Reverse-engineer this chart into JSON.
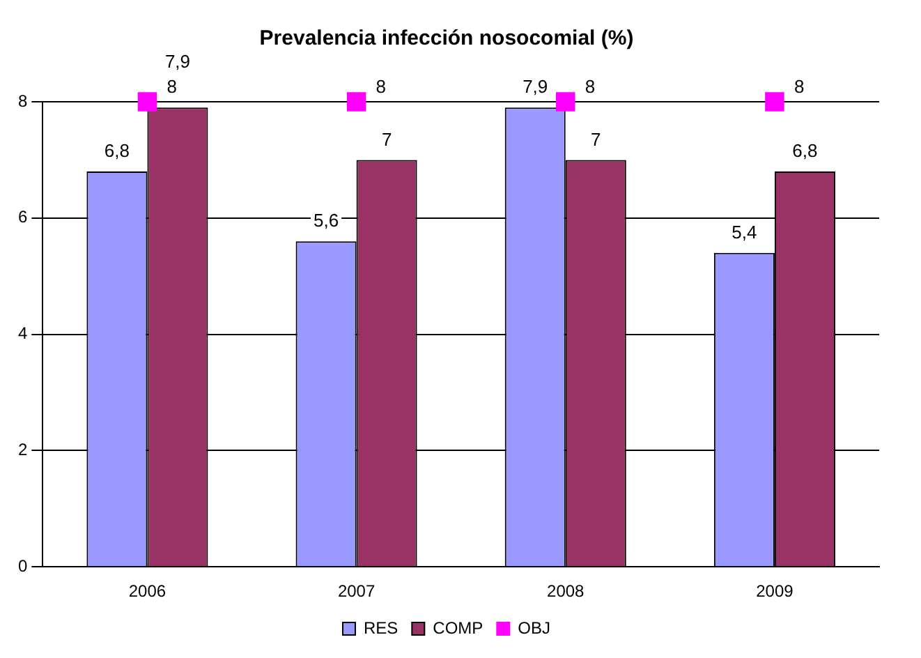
{
  "chart_data": {
    "type": "bar",
    "title": "Prevalencia infección nosocomial (%)",
    "categories": [
      "2006",
      "2007",
      "2008",
      "2009"
    ],
    "series": [
      {
        "name": "RES",
        "color": "#9999ff",
        "values": [
          6.8,
          5.6,
          7.9,
          5.4
        ],
        "value_labels": [
          "6,8",
          "5,6",
          "7,9",
          "5,4"
        ]
      },
      {
        "name": "COMP",
        "color": "#993366",
        "values": [
          7.9,
          7,
          7,
          6.8
        ],
        "value_labels": [
          "7,9",
          "7",
          "7",
          "6,8"
        ]
      },
      {
        "name": "OBJ",
        "type": "scatter",
        "color": "#ff00ff",
        "marker": "square",
        "values": [
          8,
          8,
          8,
          8
        ],
        "value_labels": [
          "8",
          "8",
          "8",
          "8"
        ]
      }
    ],
    "ylim": [
      0,
      8
    ],
    "yticks": [
      0,
      2,
      4,
      6,
      8
    ],
    "grid": "y",
    "legend": "bottom"
  }
}
